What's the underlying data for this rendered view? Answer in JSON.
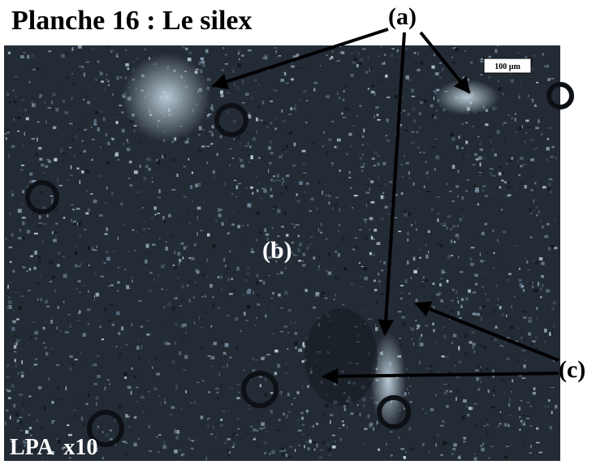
{
  "header": {
    "title": "Planche 16 : Le silex"
  },
  "labels": {
    "a": "(a)",
    "b": "(b)",
    "c": "(c)",
    "mode": "LPA  x10",
    "scale": "100 µm"
  }
}
